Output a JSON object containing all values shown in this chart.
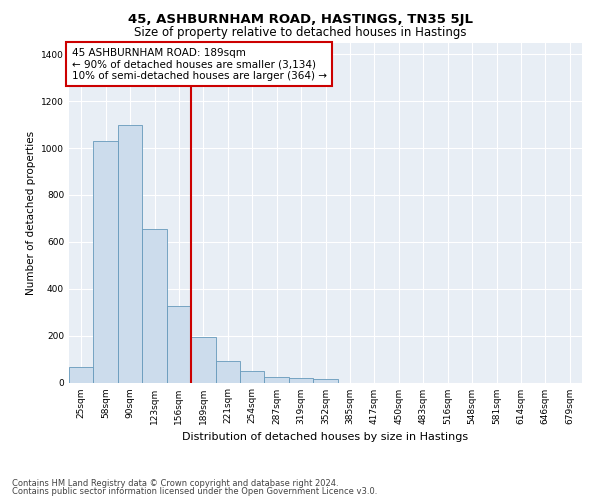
{
  "title": "45, ASHBURNHAM ROAD, HASTINGS, TN35 5JL",
  "subtitle": "Size of property relative to detached houses in Hastings",
  "xlabel": "Distribution of detached houses by size in Hastings",
  "ylabel": "Number of detached properties",
  "bar_labels": [
    "25sqm",
    "58sqm",
    "90sqm",
    "123sqm",
    "156sqm",
    "189sqm",
    "221sqm",
    "254sqm",
    "287sqm",
    "319sqm",
    "352sqm",
    "385sqm",
    "417sqm",
    "450sqm",
    "483sqm",
    "516sqm",
    "548sqm",
    "581sqm",
    "614sqm",
    "646sqm",
    "679sqm"
  ],
  "bar_values": [
    65,
    1030,
    1100,
    655,
    325,
    195,
    90,
    50,
    25,
    20,
    15,
    0,
    0,
    0,
    0,
    0,
    0,
    0,
    0,
    0,
    0
  ],
  "bar_color": "#ccdcec",
  "bar_edge_color": "#6699bb",
  "vline_color": "#cc0000",
  "annotation_line1": "45 ASHBURNHAM ROAD: 189sqm",
  "annotation_line2": "← 90% of detached houses are smaller (3,134)",
  "annotation_line3": "10% of semi-detached houses are larger (364) →",
  "annotation_box_color": "#ffffff",
  "annotation_box_edge": "#cc0000",
  "ylim": [
    0,
    1450
  ],
  "yticks": [
    0,
    200,
    400,
    600,
    800,
    1000,
    1200,
    1400
  ],
  "background_color": "#e8eef5",
  "footer_line1": "Contains HM Land Registry data © Crown copyright and database right 2024.",
  "footer_line2": "Contains public sector information licensed under the Open Government Licence v3.0.",
  "title_fontsize": 9.5,
  "subtitle_fontsize": 8.5,
  "xlabel_fontsize": 8,
  "ylabel_fontsize": 7.5,
  "tick_fontsize": 6.5,
  "annotation_fontsize": 7.5,
  "footer_fontsize": 6
}
